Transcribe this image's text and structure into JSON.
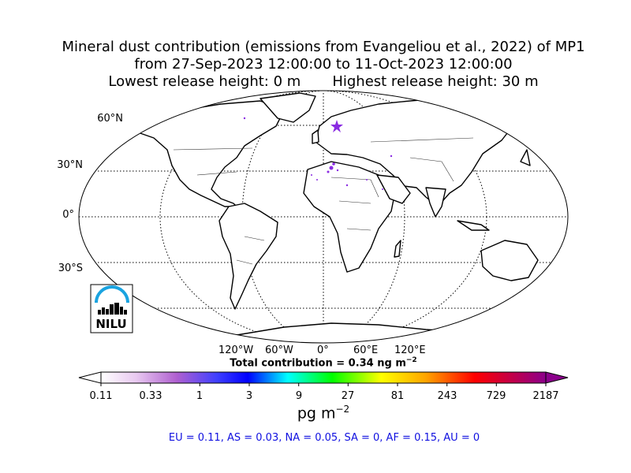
{
  "title": {
    "line1": "Mineral dust contribution (emissions from Evangeliou et al., 2022) of MP1",
    "line2": "from 27-Sep-2023 12:00:00 to 11-Oct-2023 12:00:00",
    "line3": "Lowest release height: 0 m       Highest release height: 30 m"
  },
  "map": {
    "lat_labels": [
      "60°N",
      "30°N",
      "0°",
      "30°S"
    ],
    "lon_labels": [
      "120°W",
      "60°W",
      "0°",
      "60°E",
      "120°E"
    ],
    "total": "Total contribution = 0.34 ng m",
    "total_exp": "−2",
    "logo_text": "NILU",
    "colors": {
      "coast": "#000000",
      "border": "#333333",
      "particles": "#8a2be2",
      "logo_blue": "#1aa3e0"
    }
  },
  "colorbar": {
    "ticks": [
      "0.11",
      "0.33",
      "1",
      "3",
      "9",
      "27",
      "81",
      "243",
      "729",
      "2187"
    ],
    "unit": "pg m",
    "unit_exp": "−2",
    "colors": [
      "#ffffff",
      "#e8c8f0",
      "#b060d0",
      "#3030ff",
      "#0000ff",
      "#00ffff",
      "#00ff00",
      "#ffff00",
      "#ffa500",
      "#ff0000",
      "#8b008b"
    ]
  },
  "regions": "EU = 0.11,  AS = 0.03,  NA = 0.05,  SA = 0,  AF = 0.15,  AU = 0"
}
